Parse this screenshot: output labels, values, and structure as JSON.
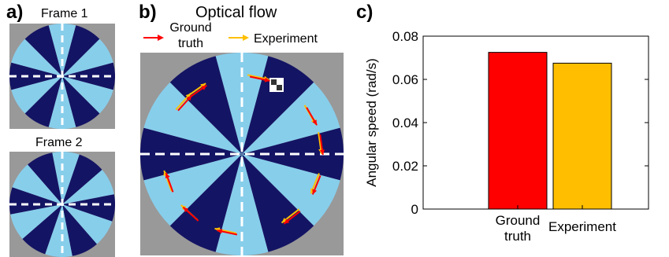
{
  "panels": {
    "a": {
      "letter": "a)",
      "frames": [
        {
          "label": "Frame 1",
          "rotation_deg": 0
        },
        {
          "label": "Frame 2",
          "rotation_deg": 4
        }
      ],
      "dark_color": "#141464",
      "light_color": "#87ceeb",
      "background_color": "#999999",
      "crosshair_color": "#ffffff"
    },
    "b": {
      "letter": "b)",
      "title": "Optical flow",
      "legend": [
        {
          "label": "Ground truth",
          "label_lines": [
            "Ground",
            "truth"
          ],
          "color": "#ff0000"
        },
        {
          "label": "Experiment",
          "label_lines": [
            "Experiment"
          ],
          "color": "#ffbf00"
        }
      ],
      "vector_angles_deg": [
        -138,
        -125,
        -78,
        -30,
        -8,
        22,
        52,
        102,
        132,
        160
      ]
    },
    "c": {
      "letter": "c)"
    }
  },
  "chart_data": {
    "type": "bar",
    "categories": [
      "Ground truth",
      "Experiment"
    ],
    "category_lines": [
      [
        "Ground",
        "truth"
      ],
      [
        "Experiment"
      ]
    ],
    "values": [
      0.0725,
      0.0675
    ],
    "colors": [
      "#ff0000",
      "#ffbf00"
    ],
    "ylabel": "Angular speed (rad/s)",
    "ylim": [
      0,
      0.08
    ],
    "yticks": [
      0,
      0.02,
      0.04,
      0.06,
      0.08
    ],
    "ytick_labels": [
      "0",
      "0.02",
      "0.04",
      "0.06",
      "0.08"
    ],
    "grid": false
  }
}
